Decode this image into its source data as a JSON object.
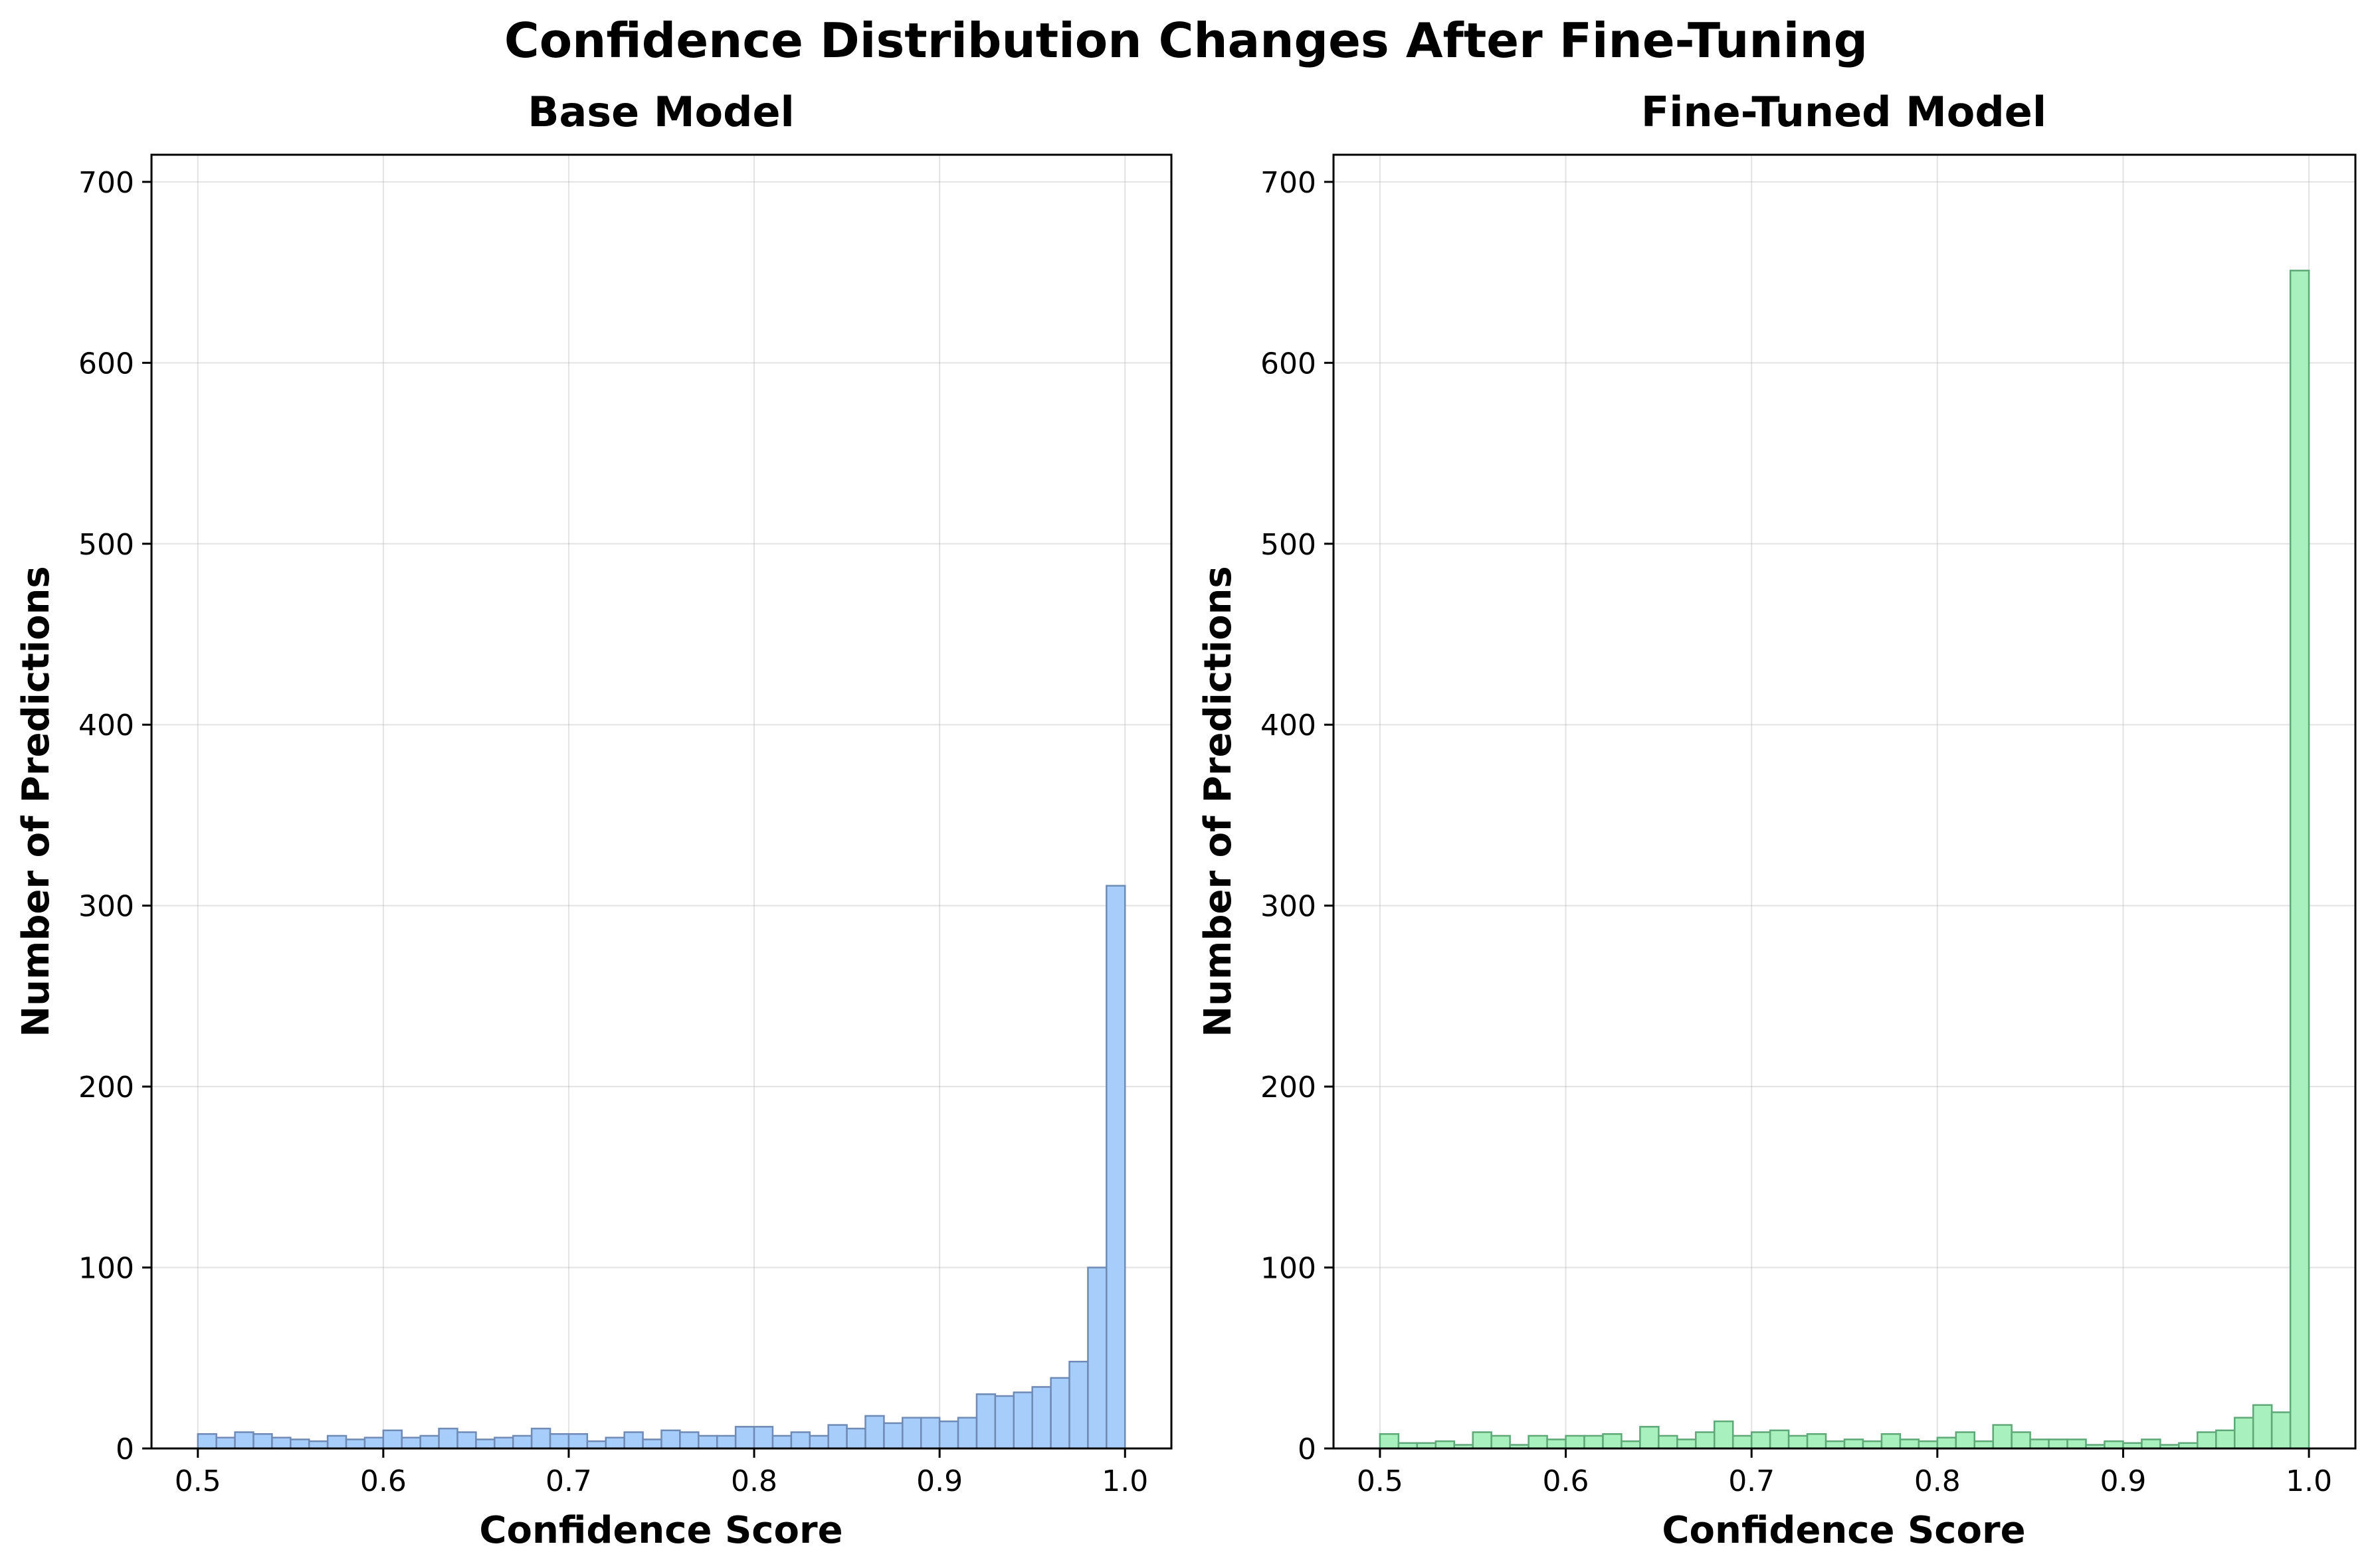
{
  "figure": {
    "title": "Confidence Distribution Changes After Fine-Tuning"
  },
  "chart_data": [
    {
      "type": "bar",
      "title": "Base Model",
      "xlabel": "Confidence Score",
      "ylabel": "Number of Predictions",
      "xlim": [
        0.475,
        1.025
      ],
      "ylim": [
        0,
        715
      ],
      "xticks": [
        "0.5",
        "0.6",
        "0.7",
        "0.8",
        "0.9",
        "1.0"
      ],
      "yticks": [
        "0",
        "100",
        "200",
        "300",
        "400",
        "500",
        "600",
        "700"
      ],
      "grid": true,
      "bin_range": [
        0.5,
        1.0
      ],
      "bin_count": 50,
      "fill_color": "#a7cefa",
      "edge_color": "#6f8bb5",
      "values": [
        8,
        6,
        9,
        8,
        6,
        5,
        4,
        7,
        5,
        6,
        10,
        6,
        7,
        11,
        9,
        5,
        6,
        7,
        11,
        8,
        8,
        4,
        6,
        9,
        5,
        10,
        9,
        7,
        7,
        12,
        12,
        7,
        9,
        7,
        13,
        11,
        18,
        14,
        17,
        17,
        15,
        17,
        30,
        29,
        31,
        34,
        39,
        48,
        100,
        311
      ]
    },
    {
      "type": "bar",
      "title": "Fine-Tuned Model",
      "xlabel": "Confidence Score",
      "ylabel": "Number of Predictions",
      "xlim": [
        0.475,
        1.025
      ],
      "ylim": [
        0,
        715
      ],
      "xticks": [
        "0.5",
        "0.6",
        "0.7",
        "0.8",
        "0.9",
        "1.0"
      ],
      "yticks": [
        "0",
        "100",
        "200",
        "300",
        "400",
        "500",
        "600",
        "700"
      ],
      "grid": true,
      "bin_range": [
        0.5,
        1.0
      ],
      "bin_count": 50,
      "fill_color": "#a8f0bd",
      "edge_color": "#5fa878",
      "values": [
        8,
        3,
        3,
        4,
        2,
        9,
        7,
        2,
        7,
        5,
        7,
        7,
        8,
        4,
        12,
        7,
        5,
        9,
        15,
        7,
        9,
        10,
        7,
        8,
        4,
        5,
        4,
        8,
        5,
        4,
        6,
        9,
        4,
        13,
        9,
        5,
        5,
        5,
        2,
        4,
        3,
        5,
        2,
        3,
        9,
        10,
        17,
        24,
        20,
        651
      ]
    }
  ]
}
